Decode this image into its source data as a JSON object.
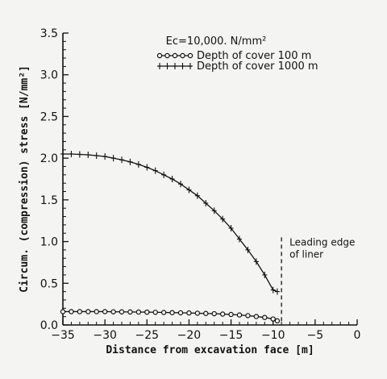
{
  "chart_data": {
    "type": "line",
    "xlabel": "Distance from excavation face [m]",
    "ylabel": "Circum. (compression) stress [N/mm²]",
    "xlim": [
      -35,
      0
    ],
    "ylim": [
      0,
      3.5
    ],
    "x_ticks": [
      "−35",
      "−30",
      "−25",
      "−20",
      "−15",
      "−10",
      "−5",
      "0"
    ],
    "y_ticks": [
      "0.0",
      "0.5",
      "1.0",
      "1.5",
      "2.0",
      "2.5",
      "3.0",
      "3.5"
    ],
    "legend_placement": "top-right",
    "legend_header": "Ec=10,000. N/mm²",
    "grid": false,
    "series": [
      {
        "name": "Depth of cover  100  m",
        "marker": "circle",
        "color": "#111111",
        "x": [
          -35,
          -34,
          -33,
          -32,
          -31,
          -30,
          -29,
          -28,
          -27,
          -26,
          -25,
          -24,
          -23,
          -22,
          -21,
          -20,
          -19,
          -18,
          -17,
          -16,
          -15,
          -14,
          -13,
          -12,
          -11,
          -10,
          -9.5
        ],
        "y": [
          0.16,
          0.16,
          0.16,
          0.16,
          0.16,
          0.16,
          0.158,
          0.157,
          0.156,
          0.155,
          0.154,
          0.152,
          0.15,
          0.148,
          0.146,
          0.144,
          0.141,
          0.138,
          0.135,
          0.131,
          0.126,
          0.12,
          0.112,
          0.102,
          0.09,
          0.072,
          0.05
        ]
      },
      {
        "name": "Depth of cover  1000  m",
        "marker": "plus",
        "color": "#111111",
        "x": [
          -35,
          -34,
          -33,
          -32,
          -31,
          -30,
          -29,
          -28,
          -27,
          -26,
          -25,
          -24,
          -23,
          -22,
          -21,
          -20,
          -19,
          -18,
          -17,
          -16,
          -15,
          -14,
          -13,
          -12,
          -11,
          -10,
          -9.5
        ],
        "y": [
          2.05,
          2.05,
          2.045,
          2.04,
          2.03,
          2.02,
          2.0,
          1.98,
          1.955,
          1.925,
          1.89,
          1.85,
          1.8,
          1.75,
          1.69,
          1.62,
          1.55,
          1.46,
          1.37,
          1.27,
          1.16,
          1.03,
          0.9,
          0.76,
          0.6,
          0.42,
          0.4
        ]
      }
    ],
    "annotation": {
      "text_lines": [
        "Leading",
        "edge",
        "of liner"
      ],
      "x": -9
    }
  }
}
